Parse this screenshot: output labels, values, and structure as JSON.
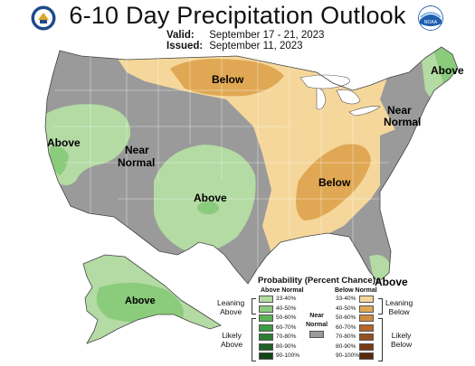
{
  "title": "6-10 Day Precipitation Outlook",
  "valid_label": "Valid:",
  "valid_value": "September 17 - 21, 2023",
  "issued_label": "Issued:",
  "issued_value": "September 11, 2023",
  "logos": {
    "left": "doc-seal-icon",
    "right": "noaa-logo-icon",
    "right_text": "NOAA"
  },
  "regions": {
    "below_north": "Below",
    "above_northeast": "Above",
    "near_normal_great_lakes": "Near Normal",
    "near_normal_great_lakes_1": "Near",
    "near_normal_great_lakes_2": "Normal",
    "above_west": "Above",
    "near_normal_west_1": "Near",
    "near_normal_west_2": "Normal",
    "above_southwest": "Above",
    "below_ohio_valley": "Below",
    "above_florida": "Above",
    "above_alaska": "Above"
  },
  "legend": {
    "title": "Probability (Percent Chance)",
    "above_header": "Above Normal",
    "below_header": "Below Normal",
    "near_normal_1": "Near",
    "near_normal_2": "Normal",
    "leaning_above_1": "Leaning",
    "leaning_above_2": "Above",
    "likely_above_1": "Likely",
    "likely_above_2": "Above",
    "leaning_below_1": "Leaning",
    "leaning_below_2": "Below",
    "likely_below_1": "Likely",
    "likely_below_2": "Below",
    "ranges": [
      "33-40%",
      "40-50%",
      "50-60%",
      "60-70%",
      "70-80%",
      "80-90%",
      "90-100%"
    ],
    "above_colors": [
      "#b3dba3",
      "#8acb7c",
      "#5cb356",
      "#3f9a44",
      "#2e7d36",
      "#1f6128",
      "#114417"
    ],
    "below_colors": [
      "#f5d79b",
      "#e0a854",
      "#cf8c3e",
      "#b3672b",
      "#94501f",
      "#773d16",
      "#5a2a0e"
    ],
    "near_color": "#9a9a9a"
  },
  "colors": {
    "above_33": "#b3dba3",
    "above_40": "#8acb7c",
    "below_33": "#f5d79b",
    "below_40": "#e0a854",
    "near": "#9a9a9a",
    "water": "#ffffff"
  }
}
